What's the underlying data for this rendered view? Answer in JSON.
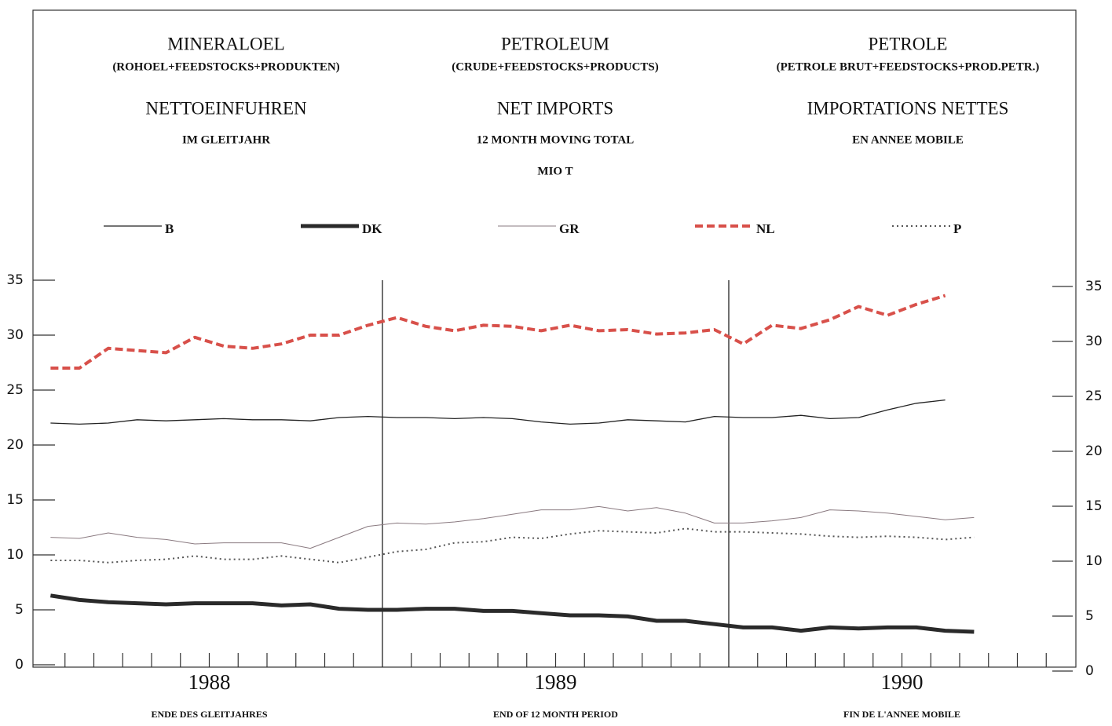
{
  "chart_data": {
    "type": "line",
    "titles": [
      {
        "name": "MINERALOEL",
        "note": "(ROHOEL+FEEDSTOCKS+PRODUKTEN)",
        "measure": "NETTOEINFUHREN",
        "period": "IM GLEITJAHR"
      },
      {
        "name": "PETROLEUM",
        "note": "(CRUDE+FEEDSTOCKS+PRODUCTS)",
        "measure": "NET IMPORTS",
        "period": "12 MONTH MOVING TOTAL"
      },
      {
        "name": "PETROLE",
        "note": "(PETROLE BRUT+FEEDSTOCKS+PROD.PETR.)",
        "measure": "IMPORTATIONS NETTES",
        "period": "EN ANNEE MOBILE"
      }
    ],
    "unit": "MIO T",
    "year_labels": [
      "1988",
      "1989",
      "1990"
    ],
    "period_labels": [
      "ENDE DES GLEITJAHRES",
      "END OF 12 MONTH PERIOD",
      "FIN DE L'ANNEE MOBILE"
    ],
    "categories": [
      null,
      null,
      null,
      null,
      null,
      null,
      null,
      null,
      null,
      null,
      null,
      null,
      null,
      null,
      null,
      null,
      null,
      null,
      null,
      null,
      null,
      null,
      null,
      null,
      null,
      null,
      null,
      null,
      null,
      null,
      null,
      null,
      null
    ],
    "ylim": [
      0,
      35
    ],
    "yticks": [
      0,
      5,
      10,
      15,
      20,
      25,
      30,
      35
    ],
    "series": [
      {
        "name": "B",
        "color": "#222222",
        "style": "solid",
        "width": 1.3,
        "values": [
          22.0,
          21.9,
          22.0,
          22.3,
          22.2,
          22.3,
          22.4,
          22.3,
          22.3,
          22.2,
          22.5,
          22.6,
          22.5,
          22.5,
          22.4,
          22.5,
          22.4,
          22.1,
          21.9,
          22.0,
          22.3,
          22.2,
          22.1,
          22.6,
          22.5,
          22.5,
          22.7,
          22.4,
          22.5,
          23.2,
          23.8,
          24.1,
          null
        ]
      },
      {
        "name": "DK",
        "color": "#2a2a2a",
        "style": "solid",
        "width": 5,
        "values": [
          6.3,
          5.9,
          5.7,
          5.6,
          5.5,
          5.6,
          5.6,
          5.6,
          5.4,
          5.5,
          5.1,
          5.0,
          5.0,
          5.1,
          5.1,
          4.9,
          4.9,
          4.7,
          4.5,
          4.5,
          4.4,
          4.0,
          4.0,
          3.7,
          3.4,
          3.4,
          3.1,
          3.4,
          3.3,
          3.4,
          3.4,
          3.1,
          3.0
        ]
      },
      {
        "name": "GR",
        "color": "#8a7a80",
        "style": "solid",
        "width": 1,
        "values": [
          11.6,
          11.5,
          12.0,
          11.6,
          11.4,
          11.0,
          11.1,
          11.1,
          11.1,
          10.6,
          11.6,
          12.6,
          12.9,
          12.8,
          13.0,
          13.3,
          13.7,
          14.1,
          14.1,
          14.4,
          14.0,
          14.3,
          13.8,
          12.9,
          12.9,
          13.1,
          13.4,
          14.1,
          14.0,
          13.8,
          13.5,
          13.2,
          13.4
        ]
      },
      {
        "name": "NL",
        "color": "#d8504a",
        "style": "dashed",
        "width": 4,
        "values": [
          27.0,
          27.0,
          28.8,
          28.6,
          28.4,
          29.8,
          29.0,
          28.8,
          29.2,
          30.0,
          30.0,
          30.9,
          31.6,
          30.8,
          30.4,
          30.9,
          30.8,
          30.4,
          30.9,
          30.4,
          30.5,
          30.1,
          30.2,
          30.5,
          29.2,
          30.9,
          30.6,
          31.4,
          32.6,
          31.8,
          32.8,
          33.6,
          null
        ]
      },
      {
        "name": "P",
        "color": "#555555",
        "style": "dotted",
        "width": 2,
        "values": [
          9.5,
          9.5,
          9.3,
          9.5,
          9.6,
          9.9,
          9.6,
          9.6,
          9.9,
          9.6,
          9.3,
          9.8,
          10.3,
          10.5,
          11.1,
          11.2,
          11.6,
          11.5,
          11.9,
          12.2,
          12.1,
          12.0,
          12.4,
          12.1,
          12.1,
          12.0,
          11.9,
          11.7,
          11.6,
          11.7,
          11.6,
          11.4,
          11.6
        ]
      }
    ]
  }
}
